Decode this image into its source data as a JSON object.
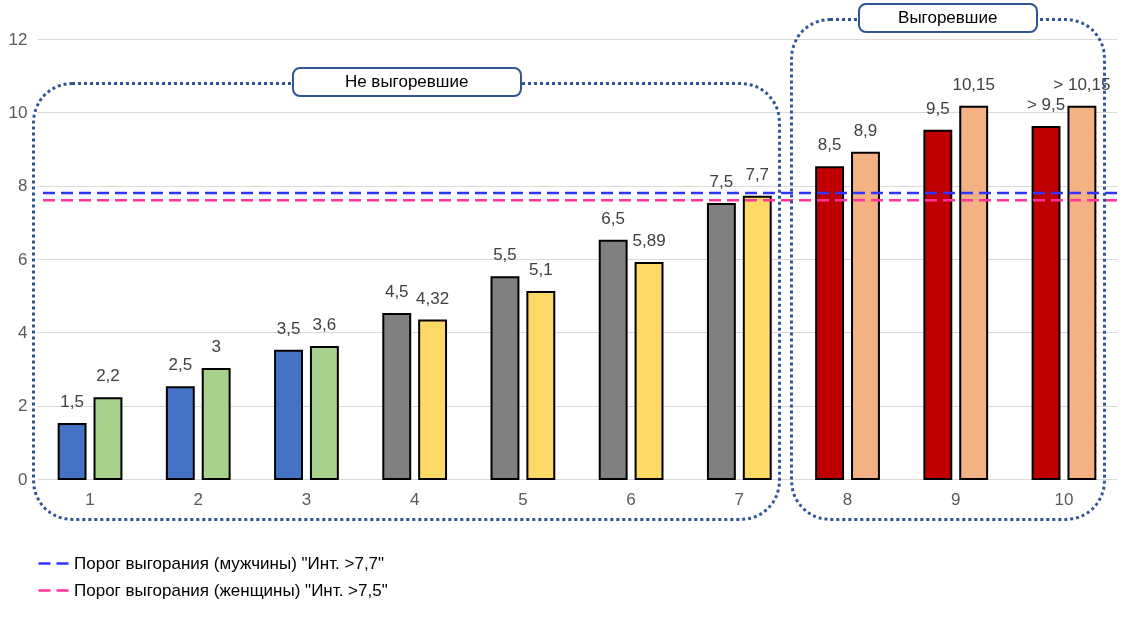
{
  "chart_data": {
    "type": "bar",
    "categories": [
      "1",
      "2",
      "3",
      "4",
      "5",
      "6",
      "7",
      "8",
      "9",
      "10"
    ],
    "series": [
      {
        "colors": [
          "#4472c4",
          "#4472c4",
          "#4472c4",
          "#808080",
          "#808080",
          "#808080",
          "#808080",
          "#c00000",
          "#c00000",
          "#c00000"
        ],
        "values": [
          1.5,
          2.5,
          3.5,
          4.5,
          5.5,
          6.5,
          7.5,
          8.5,
          9.5,
          9.6
        ],
        "value_labels": [
          "1,5",
          "2,5",
          "3,5",
          "4,5",
          "5,5",
          "6,5",
          "7,5",
          "8,5",
          "9,5",
          "> 9,5"
        ]
      },
      {
        "colors": [
          "#a9d18e",
          "#a9d18e",
          "#a9d18e",
          "#ffd966",
          "#ffd966",
          "#ffd966",
          "#ffd966",
          "#f4b183",
          "#f4b183",
          "#f4b183"
        ],
        "values": [
          2.2,
          3,
          3.6,
          4.32,
          5.1,
          5.89,
          7.7,
          8.9,
          10.15,
          10.15
        ],
        "value_labels": [
          "2,2",
          "3",
          "3,6",
          "4,32",
          "5,1",
          "5,89",
          "7,7",
          "8,9",
          "10,15",
          "> 10,15"
        ]
      }
    ],
    "ylim": [
      0,
      12
    ],
    "yticks": [
      0,
      2,
      4,
      6,
      8,
      10,
      12
    ],
    "grid": "y",
    "legend": "bottom",
    "ref_lines": [
      {
        "axis": "y",
        "value": 7.8,
        "label": "Порог выгорания (мужчины) \"Инт. >7,7\"",
        "color": "#3333ff",
        "line_style": "dashed"
      },
      {
        "axis": "y",
        "value": 7.6,
        "label": "Порог выгорания (женщины) \"Инт. >7,5\"",
        "color": "#ff3399",
        "line_style": "dashed"
      }
    ],
    "annotations": [
      "Не выгоревшие",
      "Выгоревшие"
    ]
  }
}
